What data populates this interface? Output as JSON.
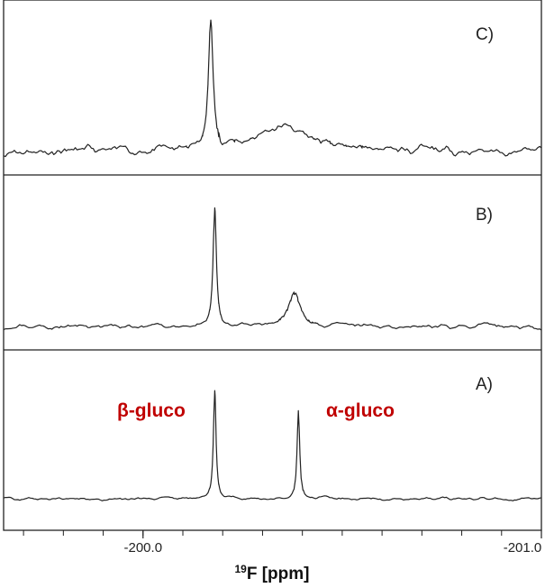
{
  "chart_data": {
    "type": "line",
    "xlabel_sup": "19",
    "xlabel": "F [ppm]",
    "x_range": [
      -199.65,
      -201.0
    ],
    "x_ticks": [
      {
        "value": -200.0,
        "label": "-200.0"
      },
      {
        "value": -201.0,
        "label": "-201.0"
      }
    ],
    "panels": [
      {
        "id": "C",
        "label": "C)",
        "peaks": [
          {
            "ppm": -200.17,
            "height": 0.85,
            "width": 0.007
          },
          {
            "ppm": -200.35,
            "height": 0.17,
            "width": 0.08
          }
        ],
        "annotations": []
      },
      {
        "id": "B",
        "label": "B)",
        "peaks": [
          {
            "ppm": -200.18,
            "height": 0.82,
            "width": 0.005
          },
          {
            "ppm": -200.38,
            "height": 0.22,
            "width": 0.018
          }
        ],
        "annotations": []
      },
      {
        "id": "A",
        "label": "A)",
        "peaks": [
          {
            "ppm": -200.18,
            "height": 0.81,
            "width": 0.004
          },
          {
            "ppm": -200.39,
            "height": 0.66,
            "width": 0.004
          }
        ],
        "annotations": [
          {
            "text": "β-gluco",
            "ppm": -199.86
          },
          {
            "text": "α-gluco",
            "ppm": -200.52
          }
        ]
      }
    ],
    "annotation_color": "#c00000",
    "grid": false
  }
}
